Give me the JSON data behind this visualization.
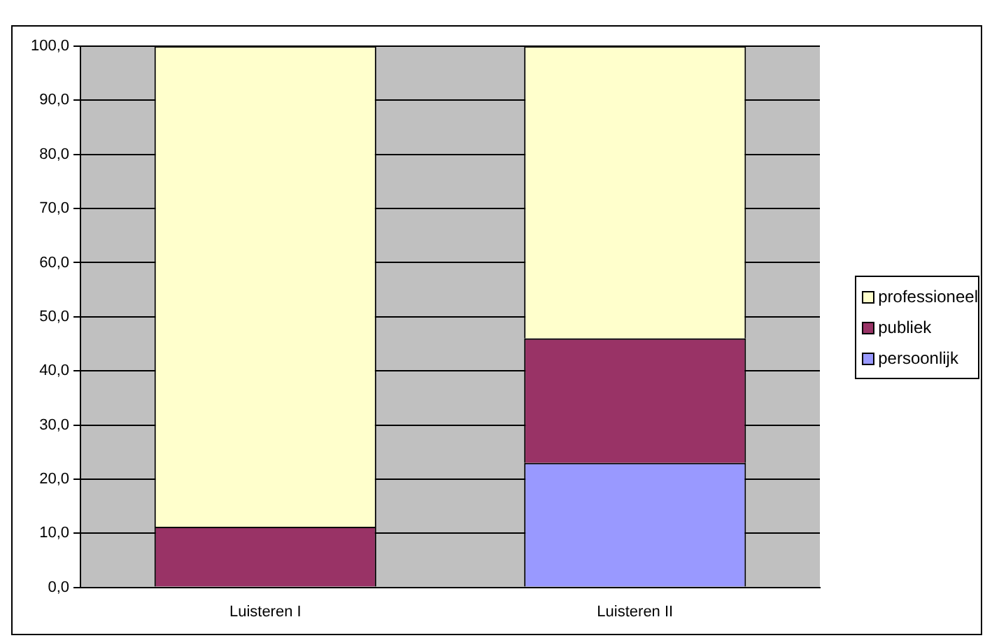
{
  "chart_data": {
    "type": "bar",
    "stacked": true,
    "categories": [
      "Luisteren I",
      "Luisteren II"
    ],
    "series": [
      {
        "name": "persoonlijk",
        "color": "#9999ff",
        "values": [
          0,
          23
        ]
      },
      {
        "name": "publiek",
        "color": "#993366",
        "values": [
          11.2,
          23
        ]
      },
      {
        "name": "professioneel",
        "color": "#ffffcc",
        "values": [
          88.8,
          54
        ]
      }
    ],
    "ylim": [
      0,
      100
    ],
    "yticks": [
      {
        "value": 0,
        "label": "0,0"
      },
      {
        "value": 10,
        "label": "10,0"
      },
      {
        "value": 20,
        "label": "20,0"
      },
      {
        "value": 30,
        "label": "30,0"
      },
      {
        "value": 40,
        "label": "40,0"
      },
      {
        "value": 50,
        "label": "50,0"
      },
      {
        "value": 60,
        "label": "60,0"
      },
      {
        "value": 70,
        "label": "70,0"
      },
      {
        "value": 80,
        "label": "80,0"
      },
      {
        "value": 90,
        "label": "90,0"
      },
      {
        "value": 100,
        "label": "100,0"
      }
    ],
    "grid": "y",
    "legend": "right"
  }
}
